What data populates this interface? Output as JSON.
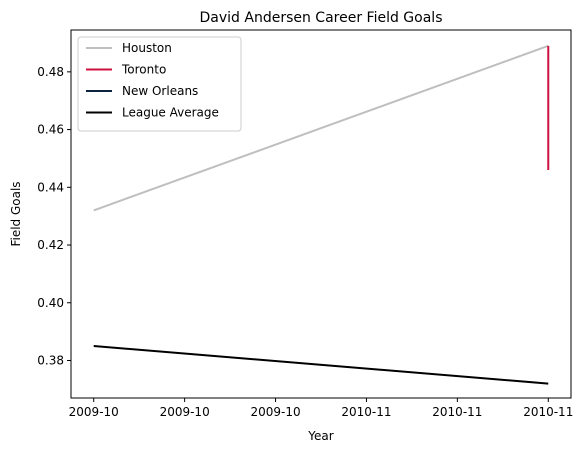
{
  "chart_data": {
    "type": "line",
    "title": "David Andersen Career Field Goals",
    "xlabel": "Year",
    "ylabel": "Field Goals",
    "x_tick_labels": [
      "2009-10",
      "2009-10",
      "2009-10",
      "2010-11",
      "2010-11",
      "2010-11"
    ],
    "y_ticks": [
      0.38,
      0.4,
      0.42,
      0.44,
      0.46,
      0.48
    ],
    "y_tick_labels": [
      "0.38",
      "0.40",
      "0.42",
      "0.44",
      "0.46",
      "0.48"
    ],
    "xlim": [
      -0.05,
      1.05
    ],
    "ylim": [
      0.367,
      0.4945
    ],
    "grid": false,
    "legend_position": "top-left",
    "series": [
      {
        "name": "Houston",
        "color": "#bfbfbf",
        "points": [
          [
            0,
            0.432
          ],
          [
            1,
            0.489
          ]
        ]
      },
      {
        "name": "Toronto",
        "color": "#ce1141",
        "points": [
          [
            1,
            0.489
          ],
          [
            1,
            0.446
          ]
        ]
      },
      {
        "name": "New Orleans",
        "color": "#0c2340",
        "points": []
      },
      {
        "name": "League Average",
        "color": "#000000",
        "points": [
          [
            0,
            0.385
          ],
          [
            1,
            0.372
          ]
        ]
      }
    ]
  }
}
